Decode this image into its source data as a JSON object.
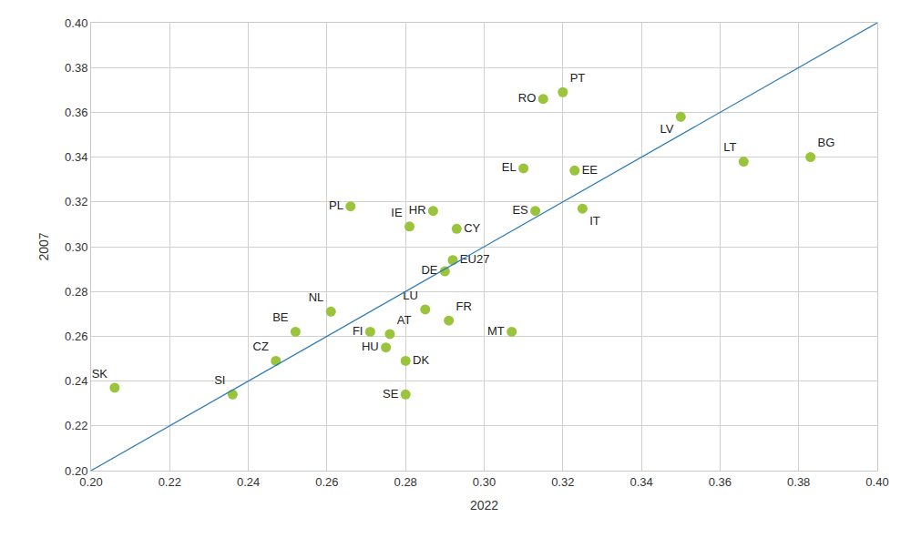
{
  "chart_data": {
    "type": "scatter",
    "x_label": "2022",
    "y_label": "2007",
    "grid": true,
    "xlim": [
      0.2,
      0.4
    ],
    "ylim": [
      0.2,
      0.4
    ],
    "xticks": [
      {
        "value": 0.2,
        "label": "0.20"
      },
      {
        "value": 0.22,
        "label": "0.22"
      },
      {
        "value": 0.24,
        "label": "0.24"
      },
      {
        "value": 0.26,
        "label": "0.26"
      },
      {
        "value": 0.28,
        "label": "0.28"
      },
      {
        "value": 0.3,
        "label": "0.30"
      },
      {
        "value": 0.32,
        "label": "0.32"
      },
      {
        "value": 0.34,
        "label": "0.34"
      },
      {
        "value": 0.36,
        "label": "0.36"
      },
      {
        "value": 0.38,
        "label": "0.38"
      },
      {
        "value": 0.4,
        "label": "0.40"
      }
    ],
    "yticks": [
      {
        "value": 0.2,
        "label": "0.20"
      },
      {
        "value": 0.22,
        "label": "0.22"
      },
      {
        "value": 0.24,
        "label": "0.24"
      },
      {
        "value": 0.26,
        "label": "0.26"
      },
      {
        "value": 0.28,
        "label": "0.28"
      },
      {
        "value": 0.3,
        "label": "0.30"
      },
      {
        "value": 0.32,
        "label": "0.32"
      },
      {
        "value": 0.34,
        "label": "0.34"
      },
      {
        "value": 0.36,
        "label": "0.36"
      },
      {
        "value": 0.38,
        "label": "0.38"
      },
      {
        "value": 0.4,
        "label": "0.40"
      }
    ],
    "series": [
      {
        "type": "scatter",
        "marker": "circle",
        "color": "#9ac43c",
        "labels": [
          "SK",
          "SI",
          "CZ",
          "BE",
          "NL",
          "FI",
          "AT",
          "HU",
          "DK",
          "SE",
          "LU",
          "FR",
          "MT",
          "DE",
          "EU27",
          "PL",
          "IE",
          "HR",
          "CY",
          "EL",
          "ES",
          "IT",
          "EE",
          "RO",
          "PT",
          "LV",
          "LT",
          "BG"
        ],
        "x": [
          0.206,
          0.236,
          0.247,
          0.252,
          0.261,
          0.271,
          0.276,
          0.275,
          0.28,
          0.28,
          0.285,
          0.291,
          0.307,
          0.29,
          0.292,
          0.266,
          0.281,
          0.287,
          0.293,
          0.31,
          0.313,
          0.325,
          0.323,
          0.315,
          0.32,
          0.35,
          0.366,
          0.383
        ],
        "values": [
          0.237,
          0.234,
          0.249,
          0.262,
          0.271,
          0.262,
          0.261,
          0.255,
          0.249,
          0.234,
          0.272,
          0.267,
          0.262,
          0.289,
          0.294,
          0.318,
          0.309,
          0.316,
          0.308,
          0.335,
          0.316,
          0.317,
          0.334,
          0.366,
          0.369,
          0.358,
          0.338,
          0.34
        ]
      },
      {
        "type": "line",
        "line_style": "solid",
        "color": "#2a7ab8",
        "x": [
          0.2,
          0.4
        ],
        "values": [
          0.2,
          0.4
        ]
      }
    ]
  }
}
